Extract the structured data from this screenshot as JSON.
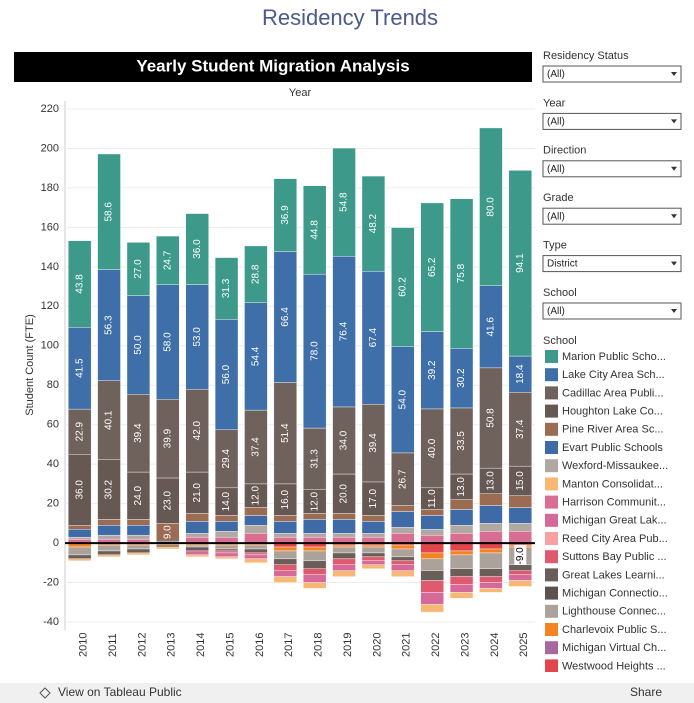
{
  "page_title": "Residency Trends",
  "chart_data": {
    "type": "stacked_bar",
    "title": "Yearly Student Migration Analysis",
    "column_header": "Year",
    "y_label": "Student Count (FTE)",
    "categories": [
      "2010",
      "2011",
      "2012",
      "2013",
      "2014",
      "2015",
      "2016",
      "2017",
      "2018",
      "2019",
      "2020",
      "2021",
      "2022",
      "2023",
      "2024",
      "2025"
    ],
    "ylim": [
      -40,
      220
    ],
    "yticks": [
      -40,
      -20,
      0,
      20,
      40,
      60,
      80,
      100,
      120,
      140,
      160,
      180,
      200,
      220
    ],
    "grid": true,
    "legend_title": "School",
    "series": [
      {
        "name": "Marion Public Scho...",
        "color": "#3d9a8b",
        "values": [
          43.8,
          58.6,
          27.0,
          24.7,
          36.0,
          31.3,
          28.8,
          36.9,
          44.8,
          54.8,
          48.2,
          60.2,
          65.2,
          75.8,
          80.0,
          94.1
        ],
        "value_labels": [
          "43.8",
          "58.6",
          "27.0",
          "24.7",
          "36.0",
          "31.3",
          "28.8",
          "36.9",
          "44.8",
          "54.8",
          "48.2",
          "60.2",
          "65.2",
          "75.8",
          "80.0",
          "94.1"
        ]
      },
      {
        "name": "Lake City Area Sch...",
        "color": "#3f6fa8",
        "values": [
          41.5,
          56.3,
          50.0,
          58.0,
          53.0,
          56.0,
          54.4,
          66.4,
          78.0,
          76.4,
          67.4,
          54.0,
          39.2,
          30.2,
          41.6,
          18.4
        ],
        "value_labels": [
          "41.5",
          "56.3",
          "50.0",
          "58.0",
          "53.0",
          "56.0",
          "54.4",
          "66.4",
          "78.0",
          "76.4",
          "67.4",
          "54.0",
          "39.2",
          "30.2",
          "41.6",
          "18.4"
        ]
      },
      {
        "name": "Cadillac Area Publi...",
        "color": "#6f615b",
        "values": [
          22.9,
          40.1,
          39.4,
          39.9,
          42.0,
          29.4,
          37.4,
          51.4,
          31.3,
          34.0,
          39.4,
          26.7,
          40.0,
          33.5,
          50.8,
          37.4
        ],
        "value_labels": [
          "22.9",
          "40.1",
          "39.4",
          "39.9",
          "42.0",
          "29.4",
          "37.4",
          "51.4",
          "31.3",
          "34.0",
          "39.4",
          "26.7",
          "40.0",
          "33.5",
          "50.8",
          "37.4"
        ]
      },
      {
        "name": "Houghton Lake Co...",
        "color": "#665852",
        "values": [
          36.0,
          30.2,
          24.0,
          23.0,
          21.0,
          14.0,
          12.0,
          16.0,
          12.0,
          20.0,
          17.0,
          0,
          11.0,
          13.0,
          13.0,
          15.0
        ],
        "value_labels": [
          "36.0",
          "30.2",
          "24.0",
          "23.0",
          "21.0",
          "14.0",
          "12.0",
          "16.0",
          "12.0",
          "20.0",
          "17.0",
          null,
          "11.0",
          "13.0",
          "13.0",
          "15.0"
        ]
      },
      {
        "name": "Pine River Area Sc...",
        "color": "#9b6b52",
        "values": [
          2,
          3,
          3,
          9.0,
          4,
          3,
          4,
          3,
          3,
          3,
          3,
          3,
          3,
          5,
          6,
          6
        ],
        "value_labels": [
          null,
          null,
          null,
          "9.0",
          null,
          null,
          null,
          null,
          null,
          null,
          null,
          null,
          null,
          null,
          null,
          null
        ]
      },
      {
        "name": "Evart Public Schools",
        "color": "#3e6aa8",
        "values": [
          4,
          5,
          5,
          1,
          6,
          5,
          5,
          6,
          7,
          7,
          6,
          8,
          7,
          8,
          9,
          8
        ]
      },
      {
        "name": "Wexford-Missaukee...",
        "color": "#b0a8a2",
        "values": [
          1,
          2,
          2,
          0,
          2,
          3,
          4,
          2,
          2,
          2,
          2,
          3,
          3,
          4,
          4,
          4
        ]
      },
      {
        "name": "Manton Consolidat...",
        "color": "#f9b776",
        "values": [
          -1,
          -1,
          -1,
          -1,
          -1,
          -1,
          -2,
          -3,
          -3,
          -3,
          -2,
          -3,
          -4,
          -3,
          -2,
          -3
        ]
      },
      {
        "name": "Harrison Communit...",
        "color": "#d86f93",
        "values": [
          2,
          2,
          2,
          0,
          3,
          3,
          5,
          3,
          3,
          3,
          3,
          5,
          4,
          5,
          6,
          6
        ]
      },
      {
        "name": "Michigan Great Lak...",
        "color": "#d4699a",
        "values": [
          0,
          0,
          0,
          0,
          -2,
          -2,
          -2,
          -3,
          -4,
          -3,
          -2,
          -3,
          -6,
          -4,
          -3,
          -3
        ]
      },
      {
        "name": "Reed City Area Pub...",
        "color": "#f7a1a3",
        "values": [
          0,
          0,
          0,
          0,
          0,
          0,
          0,
          0,
          0,
          0,
          0,
          0,
          0,
          0,
          0,
          0
        ]
      },
      {
        "name": "Suttons Bay Public ...",
        "color": "#e05a6f",
        "values": [
          0,
          0,
          0,
          0,
          0,
          -1,
          -1,
          -3,
          -3,
          -3,
          -2,
          -2,
          -6,
          -4,
          -3,
          -2
        ]
      },
      {
        "name": "Great Lakes Learni...",
        "color": "#6b5d58",
        "values": [
          -2,
          -2,
          -2,
          -1,
          -2,
          -1,
          -2,
          -3,
          -4,
          -3,
          -2,
          -2,
          -5,
          -4,
          -4,
          -3
        ]
      },
      {
        "name": "Michigan Connectio...",
        "color": "#5e514d",
        "values": [
          0,
          0,
          0,
          0,
          0,
          0,
          0,
          0,
          0,
          0,
          0,
          0,
          0,
          0,
          0,
          0
        ]
      },
      {
        "name": "Lighthouse Connec...",
        "color": "#aba29c",
        "values": [
          -4,
          -3,
          -2,
          0,
          -1,
          -2,
          -2,
          -4,
          -5,
          -3,
          -3,
          -4,
          -6,
          -7,
          -8,
          -9.0
        ],
        "value_labels": [
          null,
          null,
          null,
          null,
          null,
          null,
          null,
          null,
          null,
          null,
          null,
          null,
          null,
          null,
          null,
          "-9.0"
        ]
      },
      {
        "name": "Charlevoix Public S...",
        "color": "#f28422",
        "values": [
          -2,
          -1,
          -1,
          -1,
          -1,
          -1,
          -1,
          -2,
          -2,
          -1,
          -1,
          -2,
          -3,
          -2,
          -2,
          -1
        ]
      },
      {
        "name": "Michigan Virtual Ch...",
        "color": "#a767a0",
        "values": [
          0,
          0,
          0,
          0,
          0,
          0,
          0,
          0,
          0,
          0,
          0,
          0,
          0,
          0,
          0,
          0
        ]
      },
      {
        "name": "Westwood Heights ...",
        "color": "#e0474c",
        "values": [
          0,
          0,
          0,
          0,
          0,
          0,
          0,
          -2,
          -2,
          -1,
          -1,
          -1,
          -5,
          -4,
          -3,
          -1
        ]
      }
    ]
  },
  "filters": [
    {
      "label": "Residency Status",
      "value": "(All)"
    },
    {
      "label": "Year",
      "value": "(All)"
    },
    {
      "label": "Direction",
      "value": "(All)"
    },
    {
      "label": "Grade",
      "value": "(All)"
    },
    {
      "label": "Type",
      "value": "District"
    },
    {
      "label": "School",
      "value": "(All)"
    }
  ],
  "toolbar": {
    "view": "View on Tableau Public",
    "share": "Share"
  }
}
